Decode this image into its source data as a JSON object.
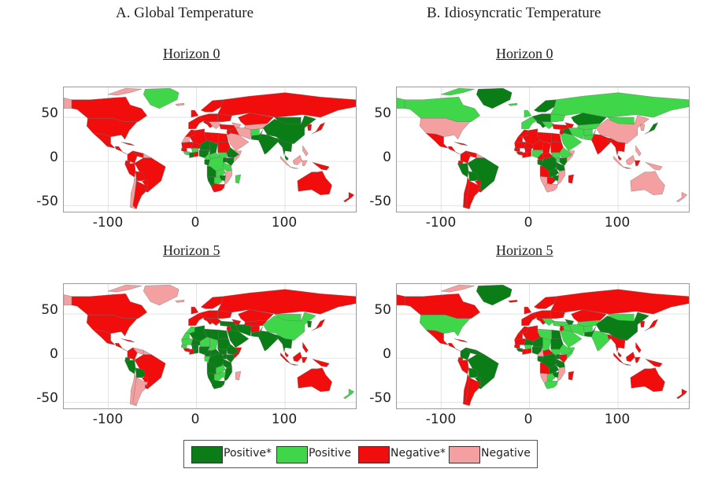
{
  "colors": {
    "positive_sig": "#0a7d16",
    "positive": "#3fd64a",
    "negative_sig": "#f20d0d",
    "negative": "#f5a0a0",
    "water": "#ffffff",
    "grid": "#cfcfcf"
  },
  "columns": [
    {
      "title": "A. Global Temperature"
    },
    {
      "title": "B. Idiosyncratic Temperature"
    }
  ],
  "panels": [
    {
      "title": "Horizon 0"
    },
    {
      "title": "Horizon 0"
    },
    {
      "title": "Horizon 5"
    },
    {
      "title": "Horizon 5"
    }
  ],
  "axes": {
    "y_ticks": [
      "50",
      "0",
      "-50"
    ],
    "x_ticks": [
      "-100",
      "0",
      "100"
    ]
  },
  "legend": [
    {
      "label": "Positive*",
      "color": "positive_sig"
    },
    {
      "label": "Positive",
      "color": "positive"
    },
    {
      "label": "Negative*",
      "color": "negative_sig"
    },
    {
      "label": "Negative",
      "color": "negative"
    }
  ]
}
